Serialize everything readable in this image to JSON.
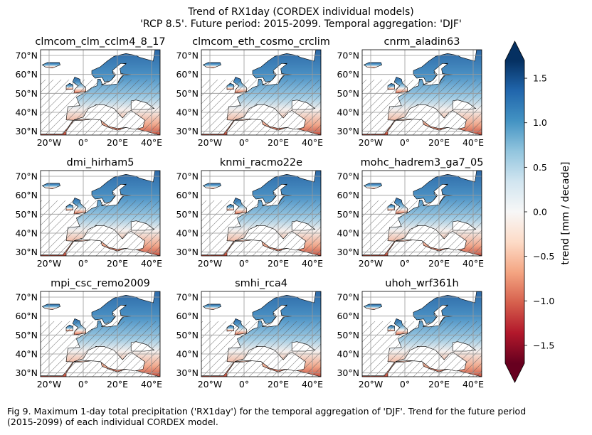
{
  "figure": {
    "title_line1": "Trend of RX1day (CORDEX individual models)",
    "title_line2": "'RCP 8.5'. Future period: 2015-2099. Temporal aggregation: 'DJF'",
    "caption_line1": "Fig 9. Maximum 1-day total precipitation ('RX1day') for the temporal aggregation of 'DJF'. Trend for the future period",
    "caption_line2": "(2015-2099) of each individual CORDEX model."
  },
  "chart_data": {
    "type": "heatmap",
    "map_extent": {
      "lon": [
        -25,
        45
      ],
      "lat": [
        28,
        73
      ]
    },
    "x_ticks": [
      "20°W",
      "0°",
      "20°E",
      "40°E"
    ],
    "x_tick_values": [
      -20,
      0,
      20,
      40
    ],
    "y_ticks": [
      "30°N",
      "40°N",
      "50°N",
      "60°N",
      "70°N"
    ],
    "y_tick_values": [
      30,
      40,
      50,
      60,
      70
    ],
    "grid": true,
    "hatching": "non-significant areas",
    "panels": [
      "clmcom_clm_cclm4_8_17",
      "clmcom_eth_cosmo_crclim",
      "cnrm_aladin63",
      "dmi_hirham5",
      "knmi_racmo22e",
      "mohc_hadrem3_ga7_05",
      "mpi_csc_remo2009",
      "smhi_rca4",
      "uhoh_wrf361h"
    ],
    "colorbar": {
      "label": "trend [mm / decade]",
      "colormap": "RdBu",
      "range": [
        -1.7,
        1.7
      ],
      "extend": "both",
      "ticks": [
        -1.5,
        -1.0,
        -0.5,
        0.0,
        0.5,
        1.0,
        1.5
      ],
      "tick_labels": [
        "−1.5",
        "−1.0",
        "−0.5",
        "0.0",
        "0.5",
        "1.0",
        "1.5"
      ],
      "colors": [
        "#67001f",
        "#b2182b",
        "#d6604d",
        "#f4a582",
        "#fddbc7",
        "#f7f7f7",
        "#d1e5f0",
        "#92c5de",
        "#4393c3",
        "#2166ac",
        "#053061"
      ]
    }
  }
}
